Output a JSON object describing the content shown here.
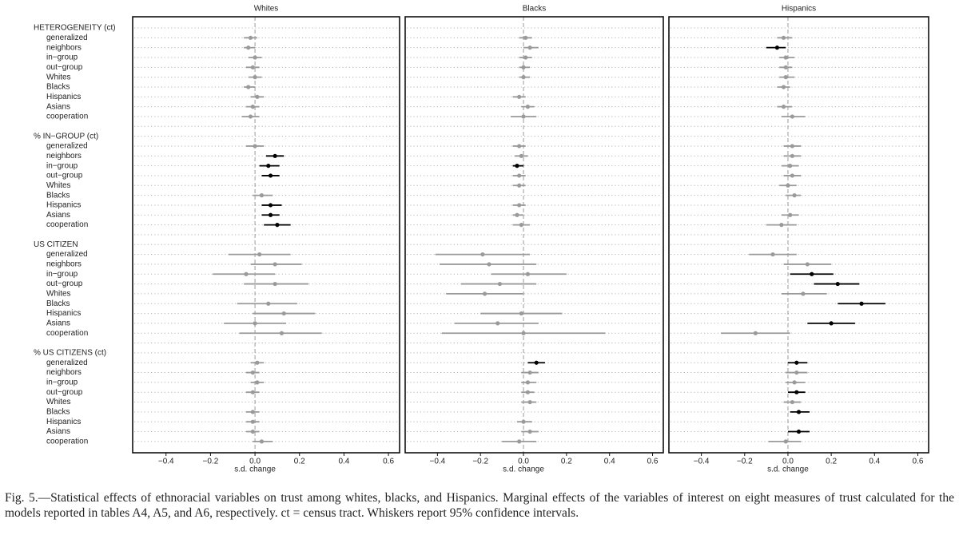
{
  "groups": [
    {
      "title": "HETEROGENEITY (ct)",
      "items": [
        "generalized",
        "neighbors",
        "in−group",
        "out−group",
        "Whites",
        "Blacks",
        "Hispanics",
        "Asians",
        "cooperation"
      ]
    },
    {
      "title": "% IN−GROUP (ct)",
      "items": [
        "generalized",
        "neighbors",
        "in−group",
        "out−group",
        "Whites",
        "Blacks",
        "Hispanics",
        "Asians",
        "cooperation"
      ]
    },
    {
      "title": "US CITIZEN",
      "items": [
        "generalized",
        "neighbors",
        "in−group",
        "out−group",
        "Whites",
        "Blacks",
        "Hispanics",
        "Asians",
        "cooperation"
      ]
    },
    {
      "title": "% US CITIZENS (ct)",
      "items": [
        "generalized",
        "neighbors",
        "in−group",
        "out−group",
        "Whites",
        "Blacks",
        "Hispanics",
        "Asians",
        "cooperation"
      ]
    }
  ],
  "chart_data": [
    {
      "type": "coefplot",
      "title": "Whites",
      "xlabel": "s.d. change",
      "xlim": [
        -0.55,
        0.65
      ],
      "xticks": [
        {
          "value": -0.4,
          "label": "−0.4"
        },
        {
          "value": -0.2,
          "label": "−0.2"
        },
        {
          "value": 0,
          "label": "0.0"
        },
        0.2,
        0.4,
        0.6
      ],
      "refline": 0,
      "colors": {
        "significant": "#000000",
        "not_significant": "#9a9a9a"
      },
      "values": [
        -0.02,
        -0.03,
        0.0,
        -0.01,
        0.0,
        -0.03,
        0.01,
        -0.01,
        -0.02,
        0.0,
        0.09,
        0.06,
        0.07,
        null,
        0.03,
        0.07,
        0.07,
        0.1,
        0.02,
        0.09,
        -0.04,
        0.09,
        null,
        0.06,
        0.13,
        0.0,
        0.12,
        0.01,
        -0.01,
        0.01,
        -0.01,
        null,
        -0.01,
        -0.01,
        -0.01,
        0.03
      ],
      "ci_low": [
        -0.05,
        -0.05,
        -0.03,
        -0.04,
        -0.03,
        -0.05,
        -0.02,
        -0.04,
        -0.06,
        -0.04,
        0.05,
        0.02,
        0.03,
        null,
        -0.01,
        0.03,
        0.03,
        0.04,
        -0.12,
        -0.02,
        -0.19,
        -0.05,
        null,
        -0.08,
        -0.01,
        -0.14,
        -0.07,
        -0.02,
        -0.04,
        -0.02,
        -0.04,
        null,
        -0.04,
        -0.04,
        -0.04,
        -0.01
      ],
      "ci_high": [
        0.01,
        0.0,
        0.03,
        0.02,
        0.03,
        0.0,
        0.04,
        0.02,
        0.02,
        0.04,
        0.13,
        0.11,
        0.11,
        null,
        0.08,
        0.12,
        0.11,
        0.16,
        0.16,
        0.21,
        0.09,
        0.24,
        null,
        0.19,
        0.27,
        0.14,
        0.3,
        0.04,
        0.02,
        0.04,
        0.02,
        null,
        0.02,
        0.02,
        0.02,
        0.08
      ],
      "significant": [
        false,
        false,
        false,
        false,
        false,
        false,
        false,
        false,
        false,
        false,
        true,
        true,
        true,
        null,
        false,
        true,
        true,
        true,
        false,
        false,
        false,
        false,
        null,
        false,
        false,
        false,
        false,
        false,
        false,
        false,
        false,
        null,
        false,
        false,
        false,
        false
      ]
    },
    {
      "type": "coefplot",
      "title": "Blacks",
      "xlabel": "s.d. change",
      "xlim": [
        -0.55,
        0.65
      ],
      "xticks": [
        {
          "value": -0.4,
          "label": "−0.4"
        },
        {
          "value": -0.2,
          "label": "−0.2"
        },
        {
          "value": 0,
          "label": "0.0"
        },
        0.2,
        0.4,
        0.6
      ],
      "refline": 0,
      "colors": {
        "significant": "#000000",
        "not_significant": "#9a9a9a"
      },
      "values": [
        0.01,
        0.03,
        0.01,
        0.0,
        0.0,
        null,
        -0.02,
        0.02,
        0.0,
        -0.02,
        -0.01,
        -0.03,
        -0.02,
        -0.02,
        null,
        -0.02,
        -0.03,
        -0.01,
        -0.19,
        -0.16,
        0.02,
        -0.11,
        -0.18,
        null,
        -0.01,
        -0.12,
        0.0,
        0.06,
        0.03,
        0.02,
        0.02,
        0.03,
        null,
        0.0,
        0.03,
        -0.02
      ],
      "ci_low": [
        -0.02,
        0.0,
        -0.02,
        -0.02,
        -0.02,
        null,
        -0.05,
        -0.01,
        -0.06,
        -0.05,
        -0.04,
        -0.05,
        -0.05,
        -0.05,
        null,
        -0.05,
        -0.05,
        -0.05,
        -0.41,
        -0.39,
        -0.15,
        -0.29,
        -0.36,
        null,
        -0.2,
        -0.32,
        -0.38,
        0.02,
        -0.01,
        -0.01,
        -0.01,
        -0.01,
        null,
        -0.03,
        -0.01,
        -0.1
      ],
      "ci_high": [
        0.04,
        0.07,
        0.04,
        0.03,
        0.03,
        null,
        0.01,
        0.05,
        0.06,
        0.01,
        0.02,
        0.0,
        0.01,
        0.01,
        null,
        0.01,
        0.0,
        0.03,
        0.03,
        0.06,
        0.2,
        0.06,
        0.0,
        null,
        0.18,
        0.07,
        0.38,
        0.1,
        0.07,
        0.06,
        0.05,
        0.06,
        null,
        0.04,
        0.07,
        0.06
      ],
      "significant": [
        false,
        false,
        false,
        false,
        false,
        null,
        false,
        false,
        false,
        false,
        false,
        true,
        false,
        false,
        null,
        false,
        false,
        false,
        false,
        false,
        false,
        false,
        false,
        null,
        false,
        false,
        false,
        true,
        false,
        false,
        false,
        false,
        null,
        false,
        false,
        false
      ]
    },
    {
      "type": "coefplot",
      "title": "Hispanics",
      "xlabel": "s.d. change",
      "xlim": [
        -0.55,
        0.65
      ],
      "xticks": [
        {
          "value": -0.4,
          "label": "−0.4"
        },
        {
          "value": -0.2,
          "label": "−0.2"
        },
        {
          "value": 0,
          "label": "0.0"
        },
        0.2,
        0.4,
        0.6
      ],
      "refline": 0,
      "colors": {
        "significant": "#000000",
        "not_significant": "#9a9a9a"
      },
      "values": [
        -0.02,
        -0.05,
        -0.01,
        -0.01,
        -0.01,
        -0.02,
        null,
        -0.02,
        0.02,
        0.02,
        0.02,
        0.01,
        0.02,
        0.0,
        0.03,
        null,
        0.01,
        -0.03,
        -0.07,
        0.09,
        0.11,
        0.23,
        0.07,
        0.34,
        null,
        0.2,
        -0.15,
        0.04,
        0.04,
        0.03,
        0.04,
        0.02,
        0.05,
        null,
        0.05,
        -0.01
      ],
      "ci_low": [
        -0.05,
        -0.1,
        -0.04,
        -0.04,
        -0.04,
        -0.05,
        null,
        -0.05,
        -0.03,
        -0.02,
        -0.02,
        -0.03,
        -0.02,
        -0.04,
        -0.01,
        null,
        -0.03,
        -0.1,
        -0.18,
        -0.02,
        0.01,
        0.12,
        -0.03,
        0.23,
        null,
        0.09,
        -0.31,
        0.0,
        -0.01,
        -0.01,
        0.0,
        -0.02,
        0.01,
        null,
        0.0,
        -0.09
      ],
      "ci_high": [
        0.02,
        -0.01,
        0.03,
        0.02,
        0.03,
        0.01,
        null,
        0.02,
        0.08,
        0.06,
        0.06,
        0.05,
        0.06,
        0.04,
        0.06,
        null,
        0.05,
        0.04,
        0.04,
        0.2,
        0.21,
        0.33,
        0.18,
        0.45,
        null,
        0.31,
        0.01,
        0.09,
        0.09,
        0.08,
        0.08,
        0.06,
        0.1,
        null,
        0.1,
        0.06
      ],
      "significant": [
        false,
        true,
        false,
        false,
        false,
        false,
        null,
        false,
        false,
        false,
        false,
        false,
        false,
        false,
        false,
        null,
        false,
        false,
        false,
        false,
        true,
        true,
        false,
        true,
        null,
        true,
        false,
        true,
        false,
        false,
        true,
        false,
        true,
        null,
        true,
        false
      ]
    }
  ],
  "caption": "Fig. 5.—Statistical effects of ethnoracial variables on trust among whites, blacks, and Hispanics. Marginal effects of the variables of interest on eight measures of trust calculated for the models reported in tables A4, A5, and A6, respectively. ct = census tract. Whiskers report 95% confidence intervals."
}
